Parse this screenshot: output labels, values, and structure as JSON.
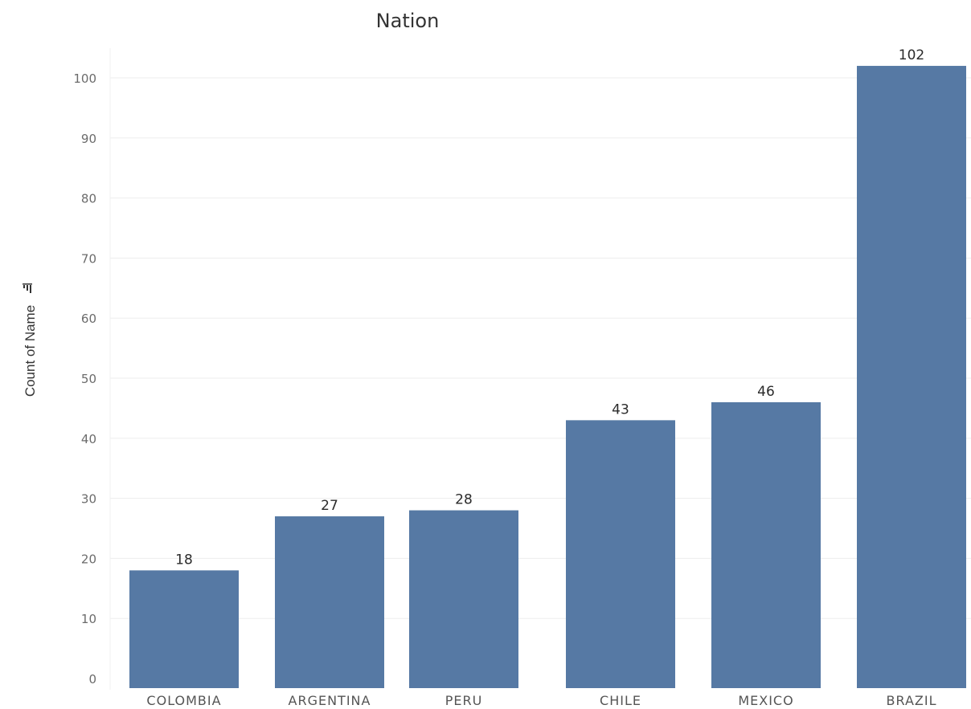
{
  "chart_data": {
    "type": "bar",
    "title": "Nation",
    "xlabel": "",
    "ylabel": "Count of Name",
    "categories": [
      "COLOMBIA",
      "ARGENTINA",
      "PERU",
      "CHILE",
      "MEXICO",
      "BRAZIL"
    ],
    "values": [
      18,
      27,
      28,
      43,
      46,
      102
    ],
    "ylim": [
      0,
      105
    ],
    "yticks": [
      0,
      10,
      20,
      30,
      40,
      50,
      60,
      70,
      80,
      90,
      100
    ],
    "grid": true,
    "data_labels": true,
    "sort_icon": "sort-descending-icon",
    "colors": {
      "bar": "#5679a4",
      "grid": "#ededed"
    }
  }
}
